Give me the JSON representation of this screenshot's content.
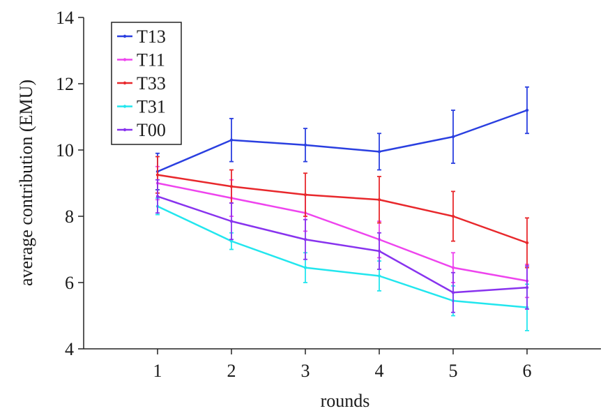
{
  "chart_data": {
    "type": "line",
    "xlabel": "rounds",
    "ylabel": "average contribution (EMU)",
    "x": [
      1,
      2,
      3,
      4,
      5,
      6
    ],
    "x_ticks": [
      "1",
      "2",
      "3",
      "4",
      "5",
      "6"
    ],
    "xlim": [
      0,
      7
    ],
    "ylim": [
      4,
      14
    ],
    "y_ticks": [
      "4",
      "6",
      "8",
      "10",
      "12",
      "14"
    ],
    "legend_position": "top-left",
    "grid": false,
    "error_bars": true,
    "series": [
      {
        "name": "T13",
        "color": "#2a3fe0",
        "values": [
          9.35,
          10.3,
          10.15,
          9.95,
          10.4,
          11.2
        ],
        "errors": [
          0.55,
          0.65,
          0.5,
          0.55,
          0.8,
          0.7
        ]
      },
      {
        "name": "T11",
        "color": "#ee44ee",
        "values": [
          9.0,
          8.55,
          8.1,
          7.3,
          6.45,
          6.05
        ],
        "errors": [
          0.5,
          0.55,
          0.55,
          0.55,
          0.45,
          0.5
        ]
      },
      {
        "name": "T33",
        "color": "#e8282c",
        "values": [
          9.25,
          8.9,
          8.65,
          8.5,
          8.0,
          7.2
        ],
        "errors": [
          0.55,
          0.5,
          0.65,
          0.7,
          0.75,
          0.75
        ]
      },
      {
        "name": "T31",
        "color": "#22e6ee",
        "values": [
          8.3,
          7.25,
          6.45,
          6.2,
          5.45,
          5.25
        ],
        "errors": [
          0.25,
          0.25,
          0.45,
          0.45,
          0.45,
          0.7
        ]
      },
      {
        "name": "T00",
        "color": "#8833ee",
        "values": [
          8.6,
          7.85,
          7.3,
          6.95,
          5.7,
          5.85
        ],
        "errors": [
          0.5,
          0.55,
          0.6,
          0.55,
          0.6,
          0.65
        ]
      }
    ]
  }
}
